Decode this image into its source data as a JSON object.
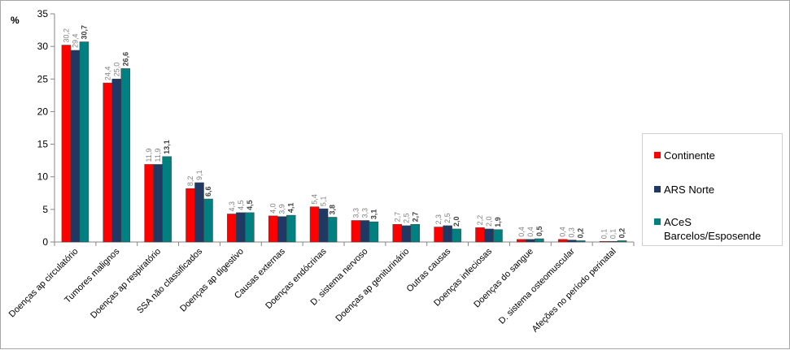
{
  "chart_data": {
    "type": "bar",
    "title": "",
    "xlabel": "",
    "ylabel": "%",
    "ylim": [
      0,
      35
    ],
    "yticks": [
      0,
      5,
      10,
      15,
      20,
      25,
      30,
      35
    ],
    "grid": false,
    "legend_position": "right",
    "categories": [
      "Doenças ap circulatório",
      "Tumores malignos",
      "Doenças ap respiratório",
      "SSA não classificados",
      "Doenças ap digestivo",
      "Causas externas",
      "Doenças endócrinas",
      "D. sistema nervoso",
      "Doenças ap geniturinário",
      "Outras causas",
      "Doenças infeciosas",
      "Doenças do sangue",
      "D. sistema osteomuscular",
      "Afeções no período perinatal"
    ],
    "series": [
      {
        "name": "Continente",
        "color": "#ff0000",
        "values": [
          30.2,
          24.4,
          11.9,
          8.2,
          4.3,
          4.0,
          5.4,
          3.3,
          2.7,
          2.3,
          2.2,
          0.4,
          0.4,
          0.1
        ],
        "labels": [
          "30,2",
          "24,4",
          "11,9",
          "8,2",
          "4,3",
          "4,0",
          "5,4",
          "3,3",
          "2,7",
          "2,3",
          "2,2",
          "0,4",
          "0,4",
          "0,1"
        ]
      },
      {
        "name": "ARS Norte",
        "color": "#1f3864",
        "values": [
          29.4,
          25.0,
          11.9,
          9.1,
          4.5,
          3.9,
          5.1,
          3.3,
          2.5,
          2.5,
          2.0,
          0.4,
          0.3,
          0.1
        ],
        "labels": [
          "29,4",
          "25,0",
          "11,9",
          "9,1",
          "4,5",
          "3,9",
          "5,1",
          "3,3",
          "2,5",
          "2,5",
          "2,0",
          "0,4",
          "0,3",
          "0,1"
        ]
      },
      {
        "name": "ACeS Barcelos/Esposende",
        "color": "#008080",
        "values": [
          30.7,
          26.6,
          13.1,
          6.6,
          4.5,
          4.1,
          3.8,
          3.1,
          2.7,
          2.0,
          1.9,
          0.5,
          0.2,
          0.2
        ],
        "labels": [
          "30,7",
          "26,6",
          "13,1",
          "6,6",
          "4,5",
          "4,1",
          "3,8",
          "3,1",
          "2,7",
          "2,0",
          "1,9",
          "0,5",
          "0,2",
          "0,2"
        ]
      }
    ]
  },
  "legend": {
    "items": [
      {
        "lines": [
          "Continente"
        ]
      },
      {
        "lines": [
          "ARS Norte"
        ]
      },
      {
        "lines": [
          "ACeS",
          "Barcelos/Esposende"
        ]
      }
    ]
  }
}
